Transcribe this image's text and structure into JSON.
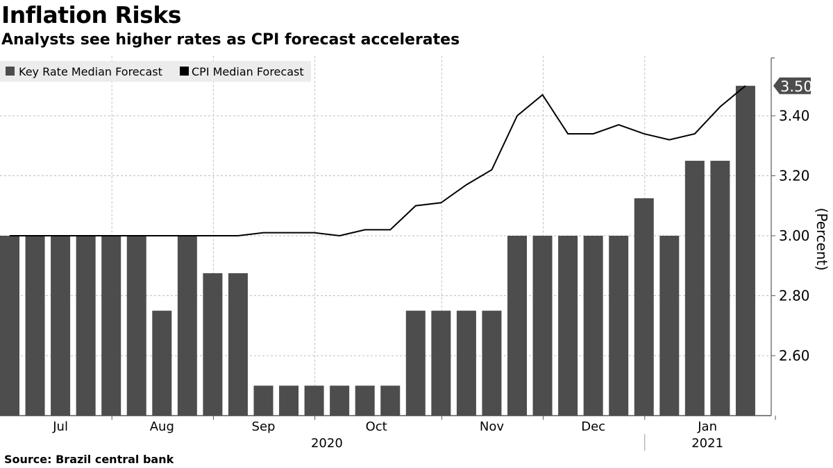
{
  "chart_data": {
    "type": "bar",
    "title": "Inflation Risks",
    "subtitle": "Analysts see higher rates as CPI forecast accelerates",
    "source": "Source: Brazil central bank",
    "ylabel": "(Percent)",
    "ylim": [
      2.4,
      3.6
    ],
    "y_ticks": [
      "2.60",
      "2.80",
      "3.00",
      "3.20",
      "3.40"
    ],
    "last_value_label": "3.50",
    "x_tick_labels": [
      "Jul",
      "Aug",
      "Sep",
      "Oct",
      "Nov",
      "Dec",
      "Jan"
    ],
    "year_labels": [
      "2020",
      "2021"
    ],
    "grid": true,
    "legend_placement": "top-left",
    "series": [
      {
        "name": "Key Rate Median Forecast",
        "type": "bar",
        "color": "#4d4d4d",
        "values": [
          3.0,
          3.0,
          3.0,
          3.0,
          3.0,
          3.0,
          2.75,
          3.0,
          2.875,
          2.875,
          2.5,
          2.5,
          2.5,
          2.5,
          2.5,
          2.5,
          2.75,
          2.75,
          2.75,
          2.75,
          3.0,
          3.0,
          3.0,
          3.0,
          3.0,
          3.125,
          3.0,
          3.25,
          3.25,
          3.5
        ]
      },
      {
        "name": "CPI Median Forecast",
        "type": "line",
        "color": "#000000",
        "values": [
          3.0,
          3.0,
          3.0,
          3.0,
          3.0,
          3.0,
          3.0,
          3.0,
          3.0,
          3.0,
          3.01,
          3.01,
          3.01,
          3.0,
          3.02,
          3.02,
          3.1,
          3.11,
          3.17,
          3.22,
          3.4,
          3.47,
          3.34,
          3.34,
          3.37,
          3.34,
          3.32,
          3.34,
          3.43,
          3.5
        ]
      }
    ]
  }
}
